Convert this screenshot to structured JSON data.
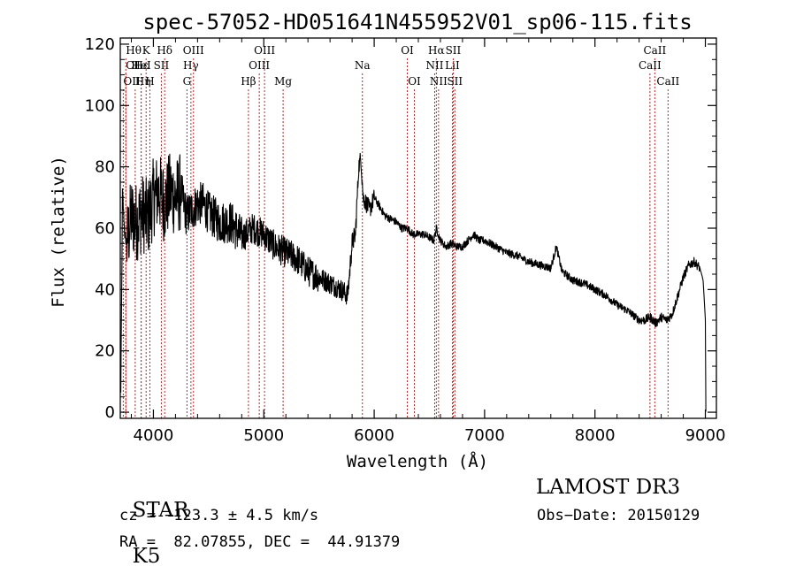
{
  "chart_data": {
    "type": "line",
    "title": "spec-57052-HD051641N455952V01_sp06-115.fits",
    "xlabel": "Wavelength (Å)",
    "ylabel": "Flux (relative)",
    "xlim": [
      3700,
      9100
    ],
    "ylim": [
      -2,
      122
    ],
    "x_ticks": [
      4000,
      5000,
      6000,
      7000,
      8000,
      9000
    ],
    "y_ticks": [
      0,
      20,
      40,
      60,
      80,
      100,
      120
    ],
    "x_tick_labels": [
      "4000",
      "5000",
      "6000",
      "7000",
      "8000",
      "9000"
    ],
    "y_tick_labels": [
      "0",
      "20",
      "40",
      "60",
      "80",
      "100",
      "120"
    ],
    "grid": false,
    "spectrum_anchor_points": {
      "x": [
        3700,
        3705,
        3720,
        3740,
        3760,
        3800,
        3850,
        3900,
        3950,
        4000,
        4050,
        4100,
        4150,
        4200,
        4250,
        4300,
        4350,
        4400,
        4450,
        4500,
        4600,
        4700,
        4800,
        4900,
        5000,
        5100,
        5200,
        5300,
        5400,
        5500,
        5600,
        5700,
        5760,
        5800,
        5830,
        5860,
        5880,
        5900,
        5930,
        5960,
        6000,
        6050,
        6100,
        6150,
        6200,
        6250,
        6300,
        6350,
        6400,
        6450,
        6500,
        6540,
        6563,
        6600,
        6650,
        6700,
        6750,
        6800,
        6850,
        6900,
        6950,
        7000,
        7100,
        7200,
        7300,
        7400,
        7500,
        7600,
        7650,
        7700,
        7800,
        7900,
        8000,
        8100,
        8200,
        8300,
        8400,
        8450,
        8500,
        8550,
        8600,
        8650,
        8700,
        8750,
        8800,
        8850,
        8900,
        8950,
        8980,
        9000,
        9005
      ],
      "y": [
        10,
        6,
        72,
        58,
        55,
        64,
        62,
        65,
        63,
        70,
        72,
        68,
        72,
        70,
        72,
        64,
        66,
        68,
        68,
        65,
        62,
        62,
        57,
        60,
        58,
        54,
        52,
        50,
        46,
        44,
        42,
        40,
        38,
        55,
        58,
        80,
        83,
        70,
        68,
        66,
        70,
        67,
        64,
        63,
        62,
        60,
        60,
        58,
        58,
        58,
        57,
        56,
        60,
        56,
        54,
        55,
        54,
        54,
        56,
        58,
        56,
        56,
        54,
        52,
        51,
        49,
        48,
        47,
        54,
        46,
        43,
        42,
        40,
        38,
        35,
        33,
        30,
        30,
        31,
        29,
        31,
        30,
        32,
        38,
        44,
        48,
        49,
        47,
        43,
        30,
        0
      ]
    },
    "spectral_lines": [
      {
        "label": "OII",
        "wavelength": 3727,
        "row": 3
      },
      {
        "label": "Hθ",
        "wavelength": 3750,
        "row": 1
      },
      {
        "label": "Hη",
        "wavelength": 3835,
        "row": 3
      },
      {
        "label": "OI",
        "wavelength": 3750,
        "row": 2
      },
      {
        "label": "Hε",
        "wavelength": 3889,
        "row": 2
      },
      {
        "label": "K",
        "wavelength": 3934,
        "row": 1
      },
      {
        "label": "H",
        "wavelength": 3968,
        "row": 3
      },
      {
        "label": "HeI",
        "wavelength": 3889,
        "row": 2
      },
      {
        "label": "SII",
        "wavelength": 4072,
        "row": 2
      },
      {
        "label": "Hδ",
        "wavelength": 4102,
        "row": 1
      },
      {
        "label": "OIII",
        "wavelength": 4363,
        "row": 1
      },
      {
        "label": "Hγ",
        "wavelength": 4340,
        "row": 2
      },
      {
        "label": "G",
        "wavelength": 4304,
        "row": 3
      },
      {
        "label": "Hβ",
        "wavelength": 4861,
        "row": 3
      },
      {
        "label": "OIII",
        "wavelength": 4959,
        "row": 2
      },
      {
        "label": "OIII",
        "wavelength": 5007,
        "row": 1
      },
      {
        "label": "Mg",
        "wavelength": 5175,
        "row": 3
      },
      {
        "label": "Na",
        "wavelength": 5893,
        "row": 2
      },
      {
        "label": "OI",
        "wavelength": 6300,
        "row": 1
      },
      {
        "label": "OI",
        "wavelength": 6364,
        "row": 3
      },
      {
        "label": "NII",
        "wavelength": 6548,
        "row": 2
      },
      {
        "label": "Hα",
        "wavelength": 6563,
        "row": 1
      },
      {
        "label": "NII",
        "wavelength": 6583,
        "row": 3
      },
      {
        "label": "SII",
        "wavelength": 6716,
        "row": 1
      },
      {
        "label": "LiI",
        "wavelength": 6708,
        "row": 2
      },
      {
        "label": "SII",
        "wavelength": 6731,
        "row": 3
      },
      {
        "label": "CaII",
        "wavelength": 8498,
        "row": 2
      },
      {
        "label": "CaII",
        "wavelength": 8542,
        "row": 1
      },
      {
        "label": "CaII",
        "wavelength": 8662,
        "row": 3
      }
    ]
  },
  "footer": {
    "class_label": "STAR",
    "subclass": "K5",
    "survey": "LAMOST DR3",
    "redshift": "cz = −123.3 ± 4.5 km/s",
    "obs_date": "Obs−Date: 20150129",
    "coords": "RA =  82.07855, DEC =  44.91379"
  },
  "colors": {
    "axis": "#000000",
    "spectrum": "#000000",
    "lines": "#cc2222"
  }
}
